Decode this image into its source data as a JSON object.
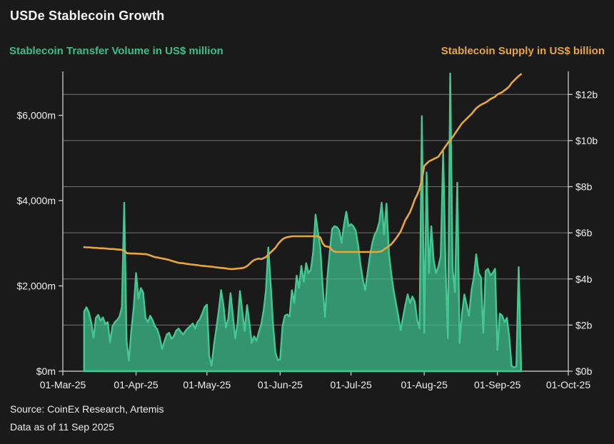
{
  "header": {
    "title": "USDe Stablecoin Growth"
  },
  "legend": {
    "left": {
      "label": "Stablecoin Transfer Volume in US$ million",
      "color": "#3dbd8c"
    },
    "right": {
      "label": "Stablecoin Supply in US$ billion",
      "color": "#e8a73c"
    }
  },
  "footer": {
    "source": "Source: CoinEx Research, Artemis",
    "as_of": "Data as of 11 Sep 2025"
  },
  "colors": {
    "background": "#1a1a1a",
    "grid": "#757575",
    "spine": "#d9d9d9",
    "tick_label": "#f0f0f0",
    "volume_stroke": "#45c794",
    "volume_fill": "#3dbd8c",
    "supply_line": "#e8a73c"
  },
  "chart_data": {
    "type": "combo-area-line-dual-axis",
    "title": "USDe Stablecoin Growth",
    "x_axis": {
      "start_date": "2025-03-01",
      "unit": "days-from-start",
      "range": [
        0,
        214
      ],
      "tick_days": [
        0,
        31,
        61,
        92,
        122,
        153,
        184,
        214
      ],
      "tick_labels": [
        "01-Mar-25",
        "01-Apr-25",
        "01-May-25",
        "01-Jun-25",
        "01-Jul-25",
        "01-Aug-25",
        "01-Sep-25",
        "01-Oct-25"
      ]
    },
    "y_left": {
      "label": "Stablecoin Transfer Volume in US$ million",
      "range": [
        0,
        7030
      ],
      "ticks": [
        0,
        2000,
        4000,
        6000
      ],
      "tick_labels": [
        "$0m",
        "$2,000m",
        "$4,000m",
        "$6,000m"
      ]
    },
    "y_right": {
      "label": "Stablecoin Supply in US$ billion",
      "range": [
        0,
        13
      ],
      "ticks": [
        0,
        2,
        4,
        6,
        8,
        10,
        12
      ],
      "tick_labels": [
        "$0b",
        "$2b",
        "$4b",
        "$6b",
        "$8b",
        "$10b",
        "$12b"
      ]
    },
    "grid": {
      "orientation": "horizontal",
      "follows_axis": "right",
      "legend_position": "top"
    },
    "series": [
      {
        "name": "Stablecoin Transfer Volume",
        "type": "area",
        "axis": "left",
        "unit": "US$ million",
        "color": "#45c794",
        "fill": "#3dbd8c",
        "fill_opacity": 0.75,
        "start_day": 9,
        "step_days": 1,
        "values": [
          1400,
          1500,
          1380,
          1150,
          780,
          1250,
          1320,
          1180,
          1260,
          1100,
          1150,
          680,
          1050,
          1150,
          1200,
          1280,
          1500,
          3950,
          700,
          250,
          950,
          1500,
          2300,
          1700,
          1950,
          1850,
          1250,
          1150,
          1300,
          1200,
          1050,
          980,
          800,
          520,
          700,
          860,
          900,
          760,
          820,
          950,
          1000,
          920,
          860,
          950,
          1010,
          1060,
          1120,
          1000,
          1150,
          1220,
          1350,
          1500,
          1560,
          350,
          130,
          620,
          1000,
          1420,
          1900,
          1540,
          1020,
          1220,
          1830,
          1300,
          770,
          1120,
          1880,
          1400,
          940,
          1550,
          1120,
          660,
          820,
          710,
          920,
          1100,
          1420,
          1900,
          2900,
          2050,
          1100,
          430,
          260,
          280,
          1050,
          1300,
          1330,
          1280,
          1900,
          1600,
          2240,
          1950,
          2470,
          2100,
          2530,
          2300,
          2380,
          2800,
          3670,
          3250,
          2900,
          2000,
          1270,
          2200,
          2800,
          3340,
          3400,
          3380,
          3300,
          3010,
          3420,
          3740,
          3400,
          3450,
          3400,
          3300,
          2950,
          2500,
          2150,
          1900,
          2300,
          2700,
          3000,
          3200,
          3300,
          3500,
          3950,
          3200,
          3930,
          2800,
          2300,
          1900,
          1600,
          1300,
          960,
          1250,
          1550,
          1800,
          1600,
          1750,
          1630,
          1200,
          1000,
          5980,
          900,
          4660,
          2300,
          3400,
          2600,
          2300,
          2450,
          2700,
          5150,
          2500,
          770,
          6980,
          2400,
          1850,
          4420,
          660,
          1350,
          1800,
          1550,
          1300,
          1900,
          2200,
          2740,
          2300,
          2200,
          900,
          2350,
          2400,
          2250,
          2300,
          2400,
          500,
          1350,
          1300,
          1150,
          1250,
          800,
          120,
          90,
          110,
          2440,
          150
        ]
      },
      {
        "name": "Stablecoin Supply",
        "type": "line",
        "axis": "right",
        "unit": "US$ billion",
        "color": "#e8a73c",
        "start_day": 9,
        "step_days": 1,
        "values": [
          5.38,
          5.37,
          5.37,
          5.36,
          5.35,
          5.35,
          5.34,
          5.33,
          5.33,
          5.32,
          5.31,
          5.3,
          5.3,
          5.29,
          5.28,
          5.27,
          5.26,
          5.25,
          5.12,
          5.11,
          5.1,
          5.1,
          5.1,
          5.09,
          5.09,
          5.08,
          5.08,
          5.05,
          5.02,
          4.98,
          4.95,
          4.93,
          4.91,
          4.89,
          4.87,
          4.85,
          4.82,
          4.79,
          4.76,
          4.73,
          4.7,
          4.69,
          4.68,
          4.66,
          4.65,
          4.63,
          4.62,
          4.61,
          4.6,
          4.58,
          4.57,
          4.56,
          4.55,
          4.54,
          4.53,
          4.52,
          4.5,
          4.49,
          4.48,
          4.47,
          4.46,
          4.44,
          4.43,
          4.43,
          4.44,
          4.45,
          4.46,
          4.47,
          4.5,
          4.56,
          4.65,
          4.75,
          4.82,
          4.86,
          4.88,
          4.86,
          4.9,
          4.95,
          5.05,
          5.15,
          5.25,
          5.35,
          5.5,
          5.62,
          5.72,
          5.78,
          5.81,
          5.83,
          5.85,
          5.85,
          5.85,
          5.85,
          5.85,
          5.85,
          5.85,
          5.85,
          5.85,
          5.85,
          5.85,
          5.85,
          5.8,
          5.55,
          5.42,
          5.4,
          5.38,
          5.25,
          5.18,
          5.17,
          5.17,
          5.17,
          5.17,
          5.17,
          5.17,
          5.17,
          5.17,
          5.17,
          5.17,
          5.17,
          5.17,
          5.17,
          5.17,
          5.17,
          5.17,
          5.17,
          5.17,
          5.18,
          5.2,
          5.28,
          5.35,
          5.42,
          5.5,
          5.62,
          5.75,
          5.9,
          6.05,
          6.3,
          6.55,
          6.72,
          6.9,
          7.15,
          7.45,
          7.65,
          7.9,
          8.3,
          8.9,
          9.0,
          9.1,
          9.15,
          9.2,
          9.25,
          9.3,
          9.45,
          9.6,
          9.75,
          9.9,
          10.02,
          10.15,
          10.3,
          10.45,
          10.6,
          10.75,
          10.85,
          10.95,
          11.05,
          11.15,
          11.28,
          11.4,
          11.48,
          11.55,
          11.6,
          11.65,
          11.72,
          11.8,
          11.85,
          11.9,
          12.0,
          12.05,
          12.1,
          12.18,
          12.25,
          12.35,
          12.5,
          12.6,
          12.7,
          12.8,
          12.88
        ]
      }
    ]
  }
}
